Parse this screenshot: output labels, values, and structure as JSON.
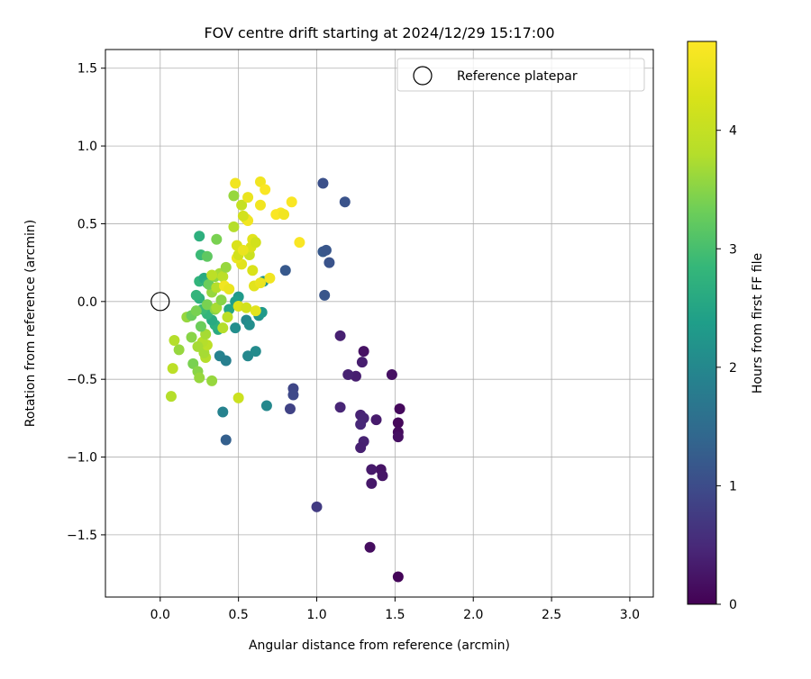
{
  "chart_data": {
    "type": "scatter",
    "title": "FOV centre drift starting at 2024/12/29 15:17:00",
    "xlabel": "Angular distance from reference (arcmin)",
    "ylabel": "Rotation from reference (arcmin)",
    "xlim": [
      -0.35,
      3.15
    ],
    "ylim": [
      -1.9,
      1.62
    ],
    "xticks": [
      0.0,
      0.5,
      1.0,
      1.5,
      2.0,
      2.5,
      3.0
    ],
    "xtick_labels": [
      "0.0",
      "0.5",
      "1.0",
      "1.5",
      "2.0",
      "2.5",
      "3.0"
    ],
    "yticks": [
      -1.5,
      -1.0,
      -0.5,
      0.0,
      0.5,
      1.0,
      1.5
    ],
    "ytick_labels": [
      "−1.5",
      "−1.0",
      "−0.5",
      "0.0",
      "0.5",
      "1.0",
      "1.5"
    ],
    "grid": true,
    "legend": {
      "position": "top-right",
      "entries": [
        "Reference platepar"
      ]
    },
    "reference_point": {
      "x": 0.0,
      "y": 0.0,
      "label": "Reference platepar"
    },
    "colorbar": {
      "label": "Hours from first FF file",
      "colormap": "viridis",
      "range": [
        0,
        4.75
      ],
      "ticks": [
        0,
        1,
        2,
        3,
        4
      ],
      "tick_labels": [
        "0",
        "1",
        "2",
        "3",
        "4"
      ]
    },
    "points": [
      {
        "x": 1.52,
        "y": -1.77,
        "c": 0.05
      },
      {
        "x": 1.34,
        "y": -1.58,
        "c": 0.15
      },
      {
        "x": 1.53,
        "y": -0.69,
        "c": 0.1
      },
      {
        "x": 1.52,
        "y": -0.78,
        "c": 0.08
      },
      {
        "x": 1.52,
        "y": -0.84,
        "c": 0.12
      },
      {
        "x": 1.52,
        "y": -0.87,
        "c": 0.18
      },
      {
        "x": 1.48,
        "y": -0.47,
        "c": 0.2
      },
      {
        "x": 1.41,
        "y": -1.08,
        "c": 0.22
      },
      {
        "x": 1.42,
        "y": -1.12,
        "c": 0.25
      },
      {
        "x": 1.35,
        "y": -1.08,
        "c": 0.3
      },
      {
        "x": 1.35,
        "y": -1.17,
        "c": 0.28
      },
      {
        "x": 1.38,
        "y": -0.76,
        "c": 0.32
      },
      {
        "x": 1.3,
        "y": -0.32,
        "c": 0.2
      },
      {
        "x": 1.29,
        "y": -0.39,
        "c": 0.35
      },
      {
        "x": 1.3,
        "y": -0.9,
        "c": 0.4
      },
      {
        "x": 1.28,
        "y": -0.94,
        "c": 0.38
      },
      {
        "x": 1.28,
        "y": -0.73,
        "c": 0.42
      },
      {
        "x": 1.3,
        "y": -0.75,
        "c": 0.45
      },
      {
        "x": 1.28,
        "y": -0.79,
        "c": 0.48
      },
      {
        "x": 1.25,
        "y": -0.48,
        "c": 0.35
      },
      {
        "x": 1.2,
        "y": -0.47,
        "c": 0.4
      },
      {
        "x": 1.15,
        "y": -0.22,
        "c": 0.38
      },
      {
        "x": 1.15,
        "y": -0.68,
        "c": 0.45
      },
      {
        "x": 1.0,
        "y": -1.32,
        "c": 0.75
      },
      {
        "x": 0.85,
        "y": -0.56,
        "c": 0.9
      },
      {
        "x": 0.85,
        "y": -0.6,
        "c": 0.95
      },
      {
        "x": 0.83,
        "y": -0.69,
        "c": 0.85
      },
      {
        "x": 1.04,
        "y": 0.76,
        "c": 1.05
      },
      {
        "x": 1.18,
        "y": 0.64,
        "c": 1.1
      },
      {
        "x": 1.04,
        "y": 0.32,
        "c": 1.2
      },
      {
        "x": 1.06,
        "y": 0.33,
        "c": 1.15
      },
      {
        "x": 1.08,
        "y": 0.25,
        "c": 1.1
      },
      {
        "x": 1.05,
        "y": 0.04,
        "c": 1.15
      },
      {
        "x": 0.8,
        "y": 0.2,
        "c": 1.2
      },
      {
        "x": 0.42,
        "y": -0.89,
        "c": 1.3
      },
      {
        "x": 0.4,
        "y": -0.71,
        "c": 1.9
      },
      {
        "x": 0.68,
        "y": -0.67,
        "c": 2.0
      },
      {
        "x": 0.56,
        "y": -0.35,
        "c": 2.0
      },
      {
        "x": 0.61,
        "y": -0.32,
        "c": 2.05
      },
      {
        "x": 0.38,
        "y": -0.35,
        "c": 1.9
      },
      {
        "x": 0.42,
        "y": -0.38,
        "c": 1.85
      },
      {
        "x": 0.55,
        "y": -0.12,
        "c": 2.0
      },
      {
        "x": 0.57,
        "y": -0.15,
        "c": 2.1
      },
      {
        "x": 0.48,
        "y": -0.17,
        "c": 2.1
      },
      {
        "x": 0.63,
        "y": -0.09,
        "c": 2.2
      },
      {
        "x": 0.65,
        "y": -0.07,
        "c": 2.3
      },
      {
        "x": 0.66,
        "y": 0.13,
        "c": 2.2
      },
      {
        "x": 0.5,
        "y": 0.03,
        "c": 2.3
      },
      {
        "x": 0.48,
        "y": 0.0,
        "c": 2.4
      },
      {
        "x": 0.44,
        "y": -0.05,
        "c": 2.5
      },
      {
        "x": 0.37,
        "y": -0.18,
        "c": 2.6
      },
      {
        "x": 0.35,
        "y": -0.15,
        "c": 2.7
      },
      {
        "x": 0.33,
        "y": -0.12,
        "c": 2.6
      },
      {
        "x": 0.3,
        "y": -0.08,
        "c": 2.8
      },
      {
        "x": 0.27,
        "y": -0.05,
        "c": 2.9
      },
      {
        "x": 0.25,
        "y": 0.02,
        "c": 2.7
      },
      {
        "x": 0.23,
        "y": 0.04,
        "c": 2.8
      },
      {
        "x": 0.25,
        "y": 0.13,
        "c": 2.8
      },
      {
        "x": 0.28,
        "y": 0.15,
        "c": 2.6
      },
      {
        "x": 0.3,
        "y": 0.12,
        "c": 2.7
      },
      {
        "x": 0.25,
        "y": 0.42,
        "c": 2.7
      },
      {
        "x": 0.26,
        "y": 0.3,
        "c": 2.9
      },
      {
        "x": 0.3,
        "y": 0.29,
        "c": 3.2
      },
      {
        "x": 0.36,
        "y": 0.4,
        "c": 3.4
      },
      {
        "x": 0.47,
        "y": 0.68,
        "c": 3.6
      },
      {
        "x": 0.47,
        "y": 0.48,
        "c": 3.8
      },
      {
        "x": 0.52,
        "y": 0.62,
        "c": 4.0
      },
      {
        "x": 0.21,
        "y": -0.4,
        "c": 3.4
      },
      {
        "x": 0.24,
        "y": -0.45,
        "c": 3.5
      },
      {
        "x": 0.25,
        "y": -0.49,
        "c": 3.6
      },
      {
        "x": 0.33,
        "y": -0.51,
        "c": 3.6
      },
      {
        "x": 0.29,
        "y": -0.36,
        "c": 3.8
      },
      {
        "x": 0.28,
        "y": -0.33,
        "c": 3.7
      },
      {
        "x": 0.3,
        "y": -0.28,
        "c": 3.9
      },
      {
        "x": 0.27,
        "y": -0.26,
        "c": 3.8
      },
      {
        "x": 0.24,
        "y": -0.29,
        "c": 3.7
      },
      {
        "x": 0.29,
        "y": -0.21,
        "c": 3.7
      },
      {
        "x": 0.2,
        "y": -0.23,
        "c": 3.5
      },
      {
        "x": 0.12,
        "y": -0.31,
        "c": 3.6
      },
      {
        "x": 0.09,
        "y": -0.25,
        "c": 3.8
      },
      {
        "x": 0.08,
        "y": -0.43,
        "c": 3.9
      },
      {
        "x": 0.07,
        "y": -0.61,
        "c": 3.8
      },
      {
        "x": 0.17,
        "y": -0.1,
        "c": 3.6
      },
      {
        "x": 0.2,
        "y": -0.09,
        "c": 3.3
      },
      {
        "x": 0.23,
        "y": -0.06,
        "c": 3.4
      },
      {
        "x": 0.26,
        "y": -0.16,
        "c": 3.3
      },
      {
        "x": 0.3,
        "y": -0.02,
        "c": 3.4
      },
      {
        "x": 0.35,
        "y": -0.05,
        "c": 3.5
      },
      {
        "x": 0.36,
        "y": -0.04,
        "c": 3.7
      },
      {
        "x": 0.39,
        "y": 0.01,
        "c": 3.5
      },
      {
        "x": 0.33,
        "y": 0.06,
        "c": 3.6
      },
      {
        "x": 0.31,
        "y": 0.11,
        "c": 3.3
      },
      {
        "x": 0.35,
        "y": 0.16,
        "c": 3.5
      },
      {
        "x": 0.38,
        "y": 0.18,
        "c": 3.7
      },
      {
        "x": 0.4,
        "y": 0.16,
        "c": 3.9
      },
      {
        "x": 0.36,
        "y": 0.09,
        "c": 3.8
      },
      {
        "x": 0.33,
        "y": 0.17,
        "c": 3.9
      },
      {
        "x": 0.42,
        "y": 0.22,
        "c": 3.6
      },
      {
        "x": 0.43,
        "y": -0.1,
        "c": 3.9
      },
      {
        "x": 0.4,
        "y": -0.17,
        "c": 3.8
      },
      {
        "x": 0.5,
        "y": -0.62,
        "c": 4.1
      },
      {
        "x": 0.5,
        "y": -0.03,
        "c": 4.3
      },
      {
        "x": 0.55,
        "y": -0.04,
        "c": 4.2
      },
      {
        "x": 0.61,
        "y": -0.06,
        "c": 4.4
      },
      {
        "x": 0.6,
        "y": 0.1,
        "c": 4.4
      },
      {
        "x": 0.64,
        "y": 0.12,
        "c": 4.5
      },
      {
        "x": 0.7,
        "y": 0.15,
        "c": 4.6
      },
      {
        "x": 0.59,
        "y": 0.2,
        "c": 4.3
      },
      {
        "x": 0.52,
        "y": 0.24,
        "c": 4.4
      },
      {
        "x": 0.49,
        "y": 0.28,
        "c": 4.5
      },
      {
        "x": 0.5,
        "y": 0.3,
        "c": 4.2
      },
      {
        "x": 0.57,
        "y": 0.3,
        "c": 4.1
      },
      {
        "x": 0.58,
        "y": 0.35,
        "c": 4.3
      },
      {
        "x": 0.59,
        "y": 0.4,
        "c": 4.4
      },
      {
        "x": 0.61,
        "y": 0.38,
        "c": 4.2
      },
      {
        "x": 0.49,
        "y": 0.36,
        "c": 4.3
      },
      {
        "x": 0.53,
        "y": 0.33,
        "c": 4.5
      },
      {
        "x": 0.41,
        "y": 0.1,
        "c": 4.6
      },
      {
        "x": 0.44,
        "y": 0.08,
        "c": 4.5
      },
      {
        "x": 0.55,
        "y": 0.53,
        "c": 4.5
      },
      {
        "x": 0.56,
        "y": 0.52,
        "c": 4.6
      },
      {
        "x": 0.53,
        "y": 0.55,
        "c": 4.2
      },
      {
        "x": 0.56,
        "y": 0.67,
        "c": 4.5
      },
      {
        "x": 0.48,
        "y": 0.76,
        "c": 4.6
      },
      {
        "x": 0.64,
        "y": 0.77,
        "c": 4.6
      },
      {
        "x": 0.67,
        "y": 0.72,
        "c": 4.7
      },
      {
        "x": 0.64,
        "y": 0.62,
        "c": 4.6
      },
      {
        "x": 0.74,
        "y": 0.56,
        "c": 4.7
      },
      {
        "x": 0.77,
        "y": 0.57,
        "c": 4.7
      },
      {
        "x": 0.79,
        "y": 0.56,
        "c": 4.6
      },
      {
        "x": 0.84,
        "y": 0.64,
        "c": 4.7
      },
      {
        "x": 0.89,
        "y": 0.38,
        "c": 4.7
      }
    ]
  }
}
